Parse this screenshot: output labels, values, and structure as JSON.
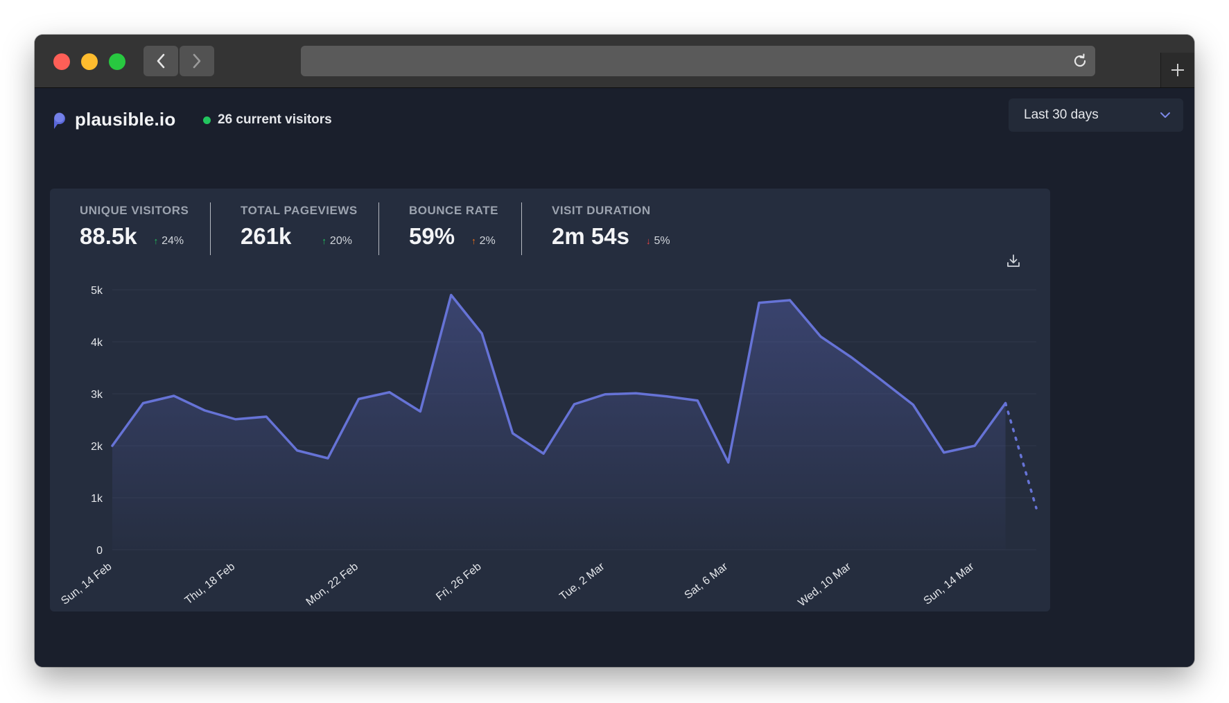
{
  "browser": {
    "url": ""
  },
  "header": {
    "brand": "plausible.io",
    "current_visitors": "26 current visitors",
    "date_range": "Last 30 days"
  },
  "stats": [
    {
      "label": "UNIQUE VISITORS",
      "value": "88.5k",
      "change": "24%",
      "direction": "up",
      "color": "#22c55e"
    },
    {
      "label": "TOTAL PAGEVIEWS",
      "value": "261k",
      "change": "20%",
      "direction": "up",
      "color": "#22c55e"
    },
    {
      "label": "BOUNCE RATE",
      "value": "59%",
      "change": "2%",
      "direction": "up",
      "color": "#f97316"
    },
    {
      "label": "VISIT DURATION",
      "value": "2m 54s",
      "change": "5%",
      "direction": "down",
      "color": "#ef4444"
    }
  ],
  "colors": {
    "line": "#6673d6",
    "accent_green": "#22c55e",
    "background": "#1a1f2c",
    "card": "#252d3e"
  },
  "icons": [
    "close-light",
    "minimize-light",
    "zoom-light",
    "chevron-left-icon",
    "chevron-right-icon",
    "reload-icon",
    "plus-icon",
    "plausible-logo-icon",
    "chevron-down-icon",
    "download-icon"
  ],
  "chart_data": {
    "type": "area",
    "ylim": [
      0,
      5000
    ],
    "y_ticks": [
      0,
      1000,
      2000,
      3000,
      4000,
      5000
    ],
    "y_tick_labels": [
      "0",
      "1k",
      "2k",
      "3k",
      "4k",
      "5k"
    ],
    "x_tick_labels": [
      "Sun, 14 Feb",
      "Thu, 18 Feb",
      "Mon, 22 Feb",
      "Fri, 26 Feb",
      "Tue, 2 Mar",
      "Sat, 6 Mar",
      "Wed, 10 Mar",
      "Sun, 14 Mar"
    ],
    "x_tick_every": 4,
    "grid": true,
    "series": [
      {
        "x": [
          "2021-02-14",
          "2021-02-15",
          "2021-02-16",
          "2021-02-17",
          "2021-02-18",
          "2021-02-19",
          "2021-02-20",
          "2021-02-21",
          "2021-02-22",
          "2021-02-23",
          "2021-02-24",
          "2021-02-25",
          "2021-02-26",
          "2021-02-27",
          "2021-02-28",
          "2021-03-01",
          "2021-03-02",
          "2021-03-03",
          "2021-03-04",
          "2021-03-05",
          "2021-03-06",
          "2021-03-07",
          "2021-03-08",
          "2021-03-09",
          "2021-03-10",
          "2021-03-11",
          "2021-03-12",
          "2021-03-13",
          "2021-03-14",
          "2021-03-15",
          "2021-03-16"
        ],
        "values": [
          2000,
          2820,
          2960,
          2680,
          2510,
          2560,
          1910,
          1760,
          2900,
          3030,
          2660,
          4900,
          4160,
          2240,
          1850,
          2800,
          2990,
          3010,
          2950,
          2870,
          1680,
          4750,
          4800,
          4100,
          3700,
          3250,
          2790,
          1870,
          2000,
          2820,
          800
        ],
        "dashed_last_segment": true
      }
    ]
  }
}
